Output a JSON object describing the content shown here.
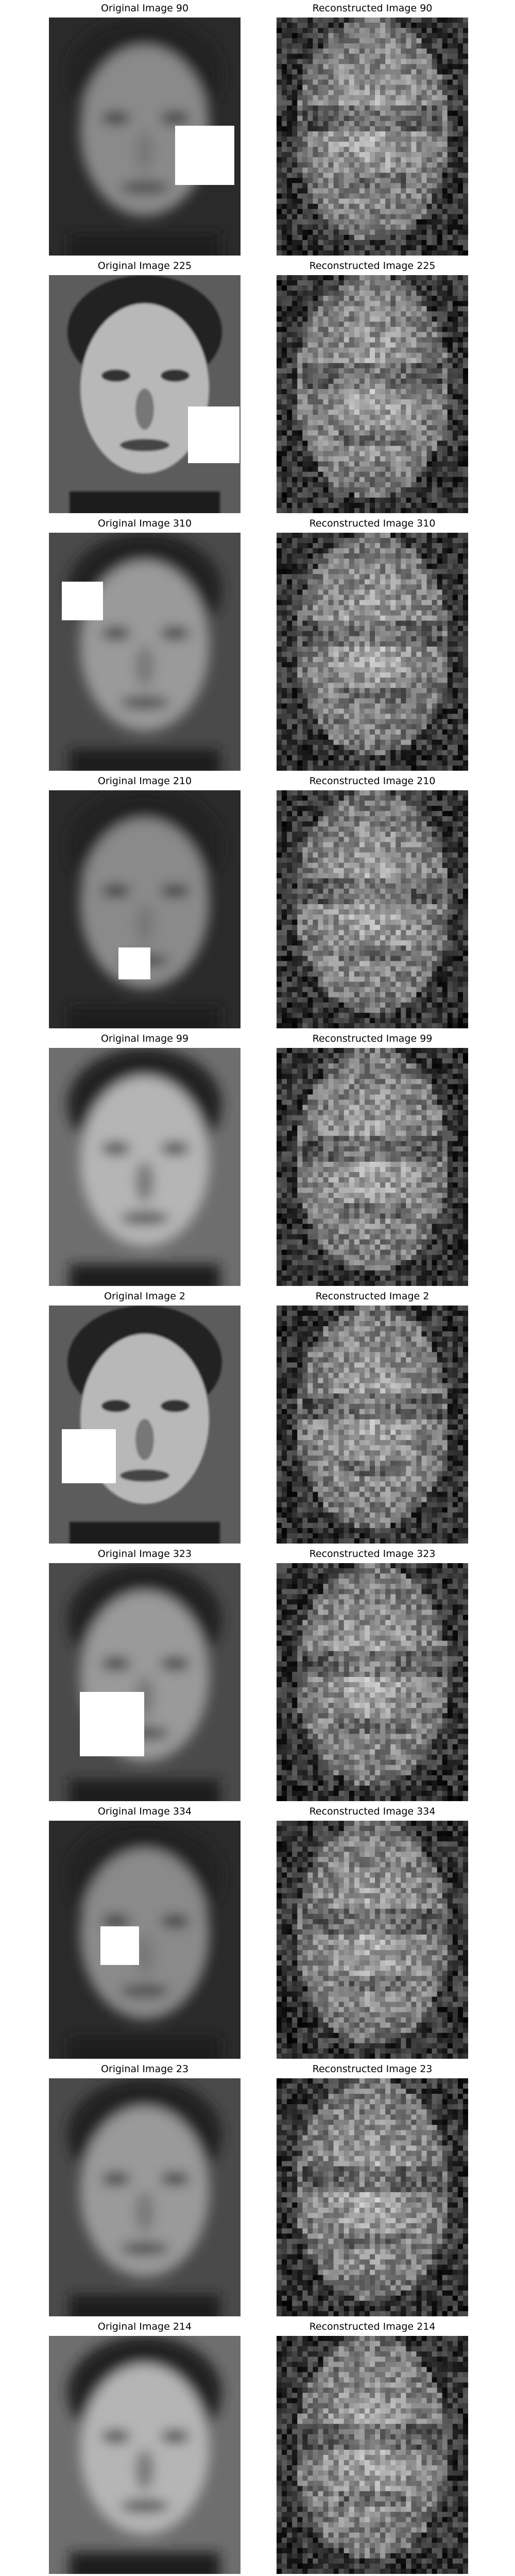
{
  "figure": {
    "pairs": [
      {
        "original_title": "Original Image 90",
        "reconstructed_title": "Reconstructed Image 90",
        "tone": "dark",
        "occlusion": "right-mid"
      },
      {
        "original_title": "Original Image 225",
        "reconstructed_title": "Reconstructed Image 225",
        "tone": "sharp",
        "occlusion": "lower-right"
      },
      {
        "original_title": "Original Image 310",
        "reconstructed_title": "Reconstructed Image 310",
        "tone": "mid",
        "occlusion": "upper-left"
      },
      {
        "original_title": "Original Image 210",
        "reconstructed_title": "Reconstructed Image 210",
        "tone": "dark",
        "occlusion": "lower-center"
      },
      {
        "original_title": "Original Image 99",
        "reconstructed_title": "Reconstructed Image 99",
        "tone": "light",
        "occlusion": "none"
      },
      {
        "original_title": "Original Image 2",
        "reconstructed_title": "Reconstructed Image 2",
        "tone": "sharp",
        "occlusion": "lower-left"
      },
      {
        "original_title": "Original Image 323",
        "reconstructed_title": "Reconstructed Image 323",
        "tone": "mid",
        "occlusion": "center"
      },
      {
        "original_title": "Original Image 334",
        "reconstructed_title": "Reconstructed Image 334",
        "tone": "dark",
        "occlusion": "lower-center-small"
      },
      {
        "original_title": "Original Image 23",
        "reconstructed_title": "Reconstructed Image 23",
        "tone": "mid",
        "occlusion": "none"
      },
      {
        "original_title": "Original Image 214",
        "reconstructed_title": "Reconstructed Image 214",
        "tone": "light",
        "occlusion": "none"
      }
    ]
  }
}
